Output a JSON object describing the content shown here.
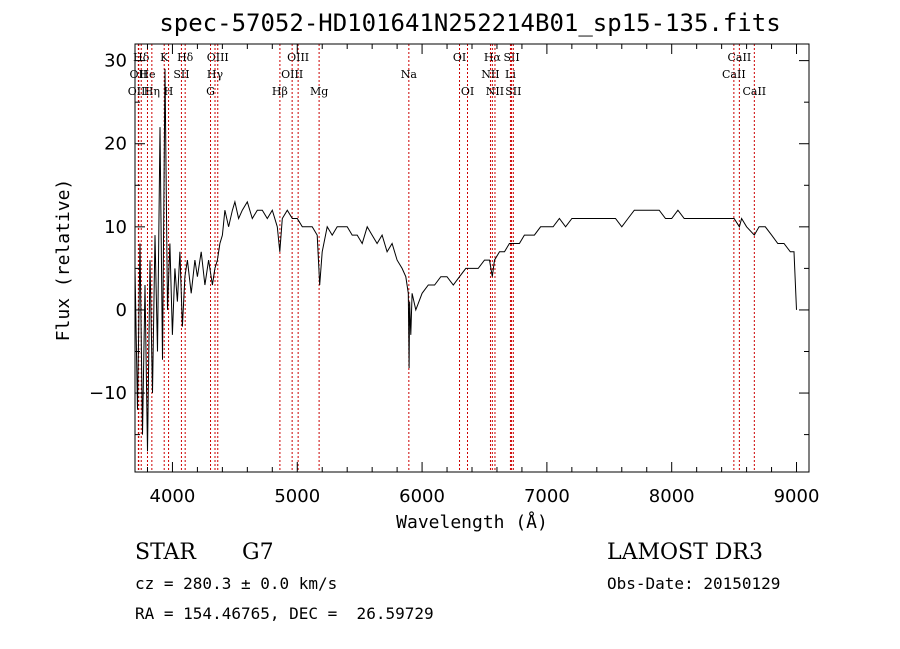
{
  "title": "spec-57052-HD101641N252214B01_sp15-135.fits",
  "info": {
    "object_class": "STAR",
    "subclass": "G7",
    "survey": "LAMOST DR3",
    "cz": "cz = 280.3 ± 0.0 km/s",
    "obs_date": "Obs-Date: 20150129",
    "coords": "RA = 154.46765, DEC =  26.59729"
  },
  "chart_data": {
    "type": "line",
    "xlabel": "Wavelength (Å)",
    "ylabel": "Flux (relative)",
    "xlim": [
      3700,
      9100
    ],
    "ylim": [
      -19.5,
      32
    ],
    "xticks": [
      4000,
      5000,
      6000,
      7000,
      8000,
      9000
    ],
    "yticks": [
      -10,
      0,
      10,
      20,
      30
    ],
    "ytick_labels": [
      "−10",
      "0",
      "10",
      "20",
      "30"
    ],
    "line_color": "#000000",
    "marker_color": "#cc0000",
    "series": [
      {
        "points": [
          [
            3700,
            5
          ],
          [
            3720,
            -12
          ],
          [
            3740,
            8
          ],
          [
            3760,
            -15
          ],
          [
            3780,
            3
          ],
          [
            3800,
            -17
          ],
          [
            3820,
            6
          ],
          [
            3840,
            -10
          ],
          [
            3860,
            9
          ],
          [
            3880,
            -5
          ],
          [
            3900,
            22
          ],
          [
            3920,
            -6
          ],
          [
            3940,
            29
          ],
          [
            3960,
            0
          ],
          [
            3980,
            8
          ],
          [
            4000,
            -3
          ],
          [
            4020,
            5
          ],
          [
            4040,
            1
          ],
          [
            4060,
            7
          ],
          [
            4080,
            -2
          ],
          [
            4100,
            4
          ],
          [
            4120,
            6
          ],
          [
            4150,
            2
          ],
          [
            4180,
            6
          ],
          [
            4200,
            4
          ],
          [
            4230,
            7
          ],
          [
            4260,
            3
          ],
          [
            4290,
            6
          ],
          [
            4320,
            3
          ],
          [
            4340,
            5
          ],
          [
            4360,
            6
          ],
          [
            4380,
            8
          ],
          [
            4400,
            9
          ],
          [
            4420,
            12
          ],
          [
            4450,
            10
          ],
          [
            4480,
            12
          ],
          [
            4500,
            13
          ],
          [
            4530,
            11
          ],
          [
            4560,
            12
          ],
          [
            4600,
            13
          ],
          [
            4640,
            11
          ],
          [
            4680,
            12
          ],
          [
            4720,
            12
          ],
          [
            4760,
            11
          ],
          [
            4800,
            12
          ],
          [
            4840,
            10
          ],
          [
            4860,
            7
          ],
          [
            4880,
            11
          ],
          [
            4920,
            12
          ],
          [
            4960,
            11
          ],
          [
            5000,
            11
          ],
          [
            5040,
            10
          ],
          [
            5080,
            10
          ],
          [
            5120,
            10
          ],
          [
            5160,
            9
          ],
          [
            5180,
            3
          ],
          [
            5200,
            7
          ],
          [
            5240,
            10
          ],
          [
            5280,
            9
          ],
          [
            5320,
            10
          ],
          [
            5360,
            10
          ],
          [
            5400,
            10
          ],
          [
            5440,
            9
          ],
          [
            5480,
            9
          ],
          [
            5520,
            8
          ],
          [
            5560,
            10
          ],
          [
            5600,
            9
          ],
          [
            5640,
            8
          ],
          [
            5680,
            9
          ],
          [
            5720,
            7
          ],
          [
            5760,
            8
          ],
          [
            5800,
            6
          ],
          [
            5840,
            5
          ],
          [
            5870,
            4
          ],
          [
            5890,
            2
          ],
          [
            5896,
            -7
          ],
          [
            5900,
            1
          ],
          [
            5910,
            -3
          ],
          [
            5920,
            2
          ],
          [
            5950,
            0
          ],
          [
            6000,
            2
          ],
          [
            6050,
            3
          ],
          [
            6100,
            3
          ],
          [
            6150,
            4
          ],
          [
            6200,
            4
          ],
          [
            6250,
            3
          ],
          [
            6300,
            4
          ],
          [
            6350,
            5
          ],
          [
            6400,
            5
          ],
          [
            6450,
            5
          ],
          [
            6500,
            6
          ],
          [
            6540,
            6
          ],
          [
            6563,
            4
          ],
          [
            6580,
            6
          ],
          [
            6620,
            7
          ],
          [
            6660,
            7
          ],
          [
            6700,
            8
          ],
          [
            6740,
            8
          ],
          [
            6780,
            8
          ],
          [
            6820,
            9
          ],
          [
            6860,
            9
          ],
          [
            6900,
            9
          ],
          [
            6950,
            10
          ],
          [
            7000,
            10
          ],
          [
            7050,
            10
          ],
          [
            7100,
            11
          ],
          [
            7150,
            10
          ],
          [
            7200,
            11
          ],
          [
            7250,
            11
          ],
          [
            7300,
            11
          ],
          [
            7350,
            11
          ],
          [
            7400,
            11
          ],
          [
            7450,
            11
          ],
          [
            7500,
            11
          ],
          [
            7550,
            11
          ],
          [
            7600,
            10
          ],
          [
            7650,
            11
          ],
          [
            7700,
            12
          ],
          [
            7750,
            12
          ],
          [
            7800,
            12
          ],
          [
            7850,
            12
          ],
          [
            7900,
            12
          ],
          [
            7950,
            11
          ],
          [
            8000,
            11
          ],
          [
            8050,
            12
          ],
          [
            8100,
            11
          ],
          [
            8150,
            11
          ],
          [
            8200,
            11
          ],
          [
            8250,
            11
          ],
          [
            8300,
            11
          ],
          [
            8350,
            11
          ],
          [
            8400,
            11
          ],
          [
            8450,
            11
          ],
          [
            8500,
            11
          ],
          [
            8542,
            10
          ],
          [
            8560,
            11
          ],
          [
            8600,
            10
          ],
          [
            8662,
            9
          ],
          [
            8700,
            10
          ],
          [
            8750,
            10
          ],
          [
            8800,
            9
          ],
          [
            8850,
            8
          ],
          [
            8900,
            8
          ],
          [
            8950,
            7
          ],
          [
            8980,
            7
          ],
          [
            9000,
            0
          ]
        ]
      }
    ],
    "lines": [
      {
        "label": "Hδ",
        "x": 3750,
        "row": 1
      },
      {
        "label": "OII",
        "x": 3727,
        "row": 2
      },
      {
        "label": "OIII",
        "x": 3730,
        "row": 3
      },
      {
        "label": "He",
        "x": 3800,
        "row": 2
      },
      {
        "label": "Hη",
        "x": 3835,
        "row": 3
      },
      {
        "label": "K",
        "x": 3934,
        "row": 1
      },
      {
        "label": "H",
        "x": 3969,
        "row": 3
      },
      {
        "label": "SII",
        "x": 4072,
        "row": 2
      },
      {
        "label": "Hδ",
        "x": 4102,
        "row": 1
      },
      {
        "label": "OIII",
        "x": 4363,
        "row": 1
      },
      {
        "label": "Hγ",
        "x": 4341,
        "row": 2
      },
      {
        "label": "G",
        "x": 4305,
        "row": 3
      },
      {
        "label": "Hβ",
        "x": 4861,
        "row": 3
      },
      {
        "label": "OIII",
        "x": 5007,
        "row": 1
      },
      {
        "label": "OIII",
        "x": 4959,
        "row": 2
      },
      {
        "label": "Mg",
        "x": 5175,
        "row": 3
      },
      {
        "label": "Na",
        "x": 5894,
        "row": 2
      },
      {
        "label": "OI",
        "x": 6300,
        "row": 1
      },
      {
        "label": "OI",
        "x": 6364,
        "row": 3
      },
      {
        "label": "Hα",
        "x": 6563,
        "row": 1
      },
      {
        "label": "NII",
        "x": 6548,
        "row": 2
      },
      {
        "label": "NII",
        "x": 6584,
        "row": 3
      },
      {
        "label": "SII",
        "x": 6717,
        "row": 1
      },
      {
        "label": "Li",
        "x": 6708,
        "row": 2
      },
      {
        "label": "SII",
        "x": 6731,
        "row": 3
      },
      {
        "label": "CaII",
        "x": 8542,
        "row": 1
      },
      {
        "label": "CaII",
        "x": 8498,
        "row": 2
      },
      {
        "label": "CaII",
        "x": 8662,
        "row": 3
      }
    ]
  }
}
